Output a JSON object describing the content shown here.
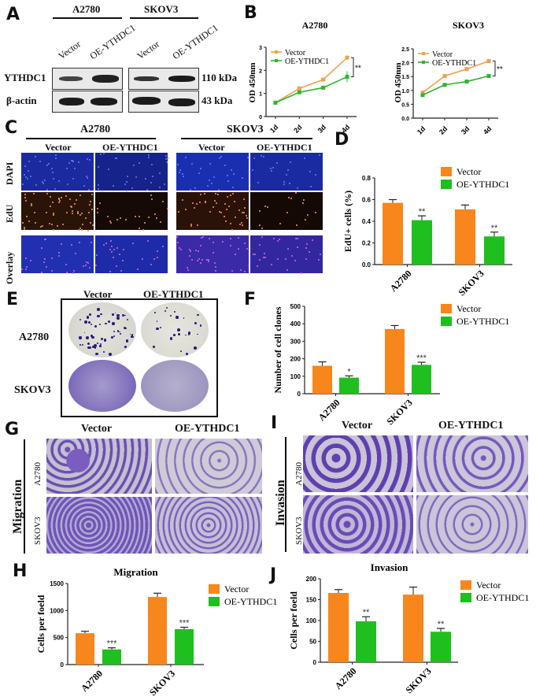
{
  "panels": {
    "A": {
      "label": "A",
      "cell_lines": [
        "A2780",
        "SKOV3"
      ],
      "lanes": [
        "Vector",
        "OE-YTHDC1",
        "Vector",
        "OE-YTHDC1"
      ],
      "rows": [
        {
          "protein": "YTHDC1",
          "size": "110 kDa"
        },
        {
          "protein": "β-actin",
          "size": "43 kDa"
        }
      ]
    },
    "B": {
      "label": "B"
    },
    "C": {
      "label": "C",
      "cell_lines": [
        "A2780",
        "SKOV3"
      ],
      "columns": [
        "Vector",
        "OE-YTHDC1",
        "Vector",
        "OE-YTHDC1"
      ],
      "rows": [
        "DAPI",
        "EdU",
        "Overlay"
      ]
    },
    "D": {
      "label": "D"
    },
    "E": {
      "label": "E",
      "columns": [
        "Vector",
        "OE-YTHDC1"
      ],
      "rows": [
        "A2780",
        "SKOV3"
      ]
    },
    "F": {
      "label": "F"
    },
    "G": {
      "label": "G",
      "assay": "Migration",
      "columns": [
        "Vector",
        "OE-YTHDC1"
      ],
      "rows": [
        "A2780",
        "SKOV3"
      ]
    },
    "H": {
      "label": "H"
    },
    "I": {
      "label": "I",
      "assay": "Invasion",
      "columns": [
        "Vector",
        "OE-YTHDC1"
      ],
      "rows": [
        "A2780",
        "SKOV3"
      ]
    },
    "J": {
      "label": "J"
    }
  },
  "colors": {
    "vector": "#f7861c",
    "oe": "#1fbf1f",
    "vector_line": "#f0a050",
    "oe_line": "#2db52d"
  },
  "chart_data": [
    {
      "id": "B-A2780",
      "type": "line",
      "title": "A2780",
      "xlabel": "",
      "ylabel": "OD 450nm",
      "x": [
        "1d",
        "2d",
        "3d",
        "4d"
      ],
      "ylim": [
        0,
        3
      ],
      "yticks": [
        0,
        1,
        2,
        3
      ],
      "series": [
        {
          "name": "Vector",
          "values": [
            0.6,
            1.22,
            1.6,
            2.55
          ],
          "errors": [
            0.03,
            0.04,
            0.04,
            0.06
          ]
        },
        {
          "name": "OE-YTHDC1",
          "values": [
            0.6,
            1.05,
            1.25,
            1.72
          ],
          "errors": [
            0.03,
            0.04,
            0.08,
            0.24
          ]
        }
      ],
      "annotations": [
        "**"
      ],
      "legend_position": "upper left",
      "grid": false
    },
    {
      "id": "B-SKOV3",
      "type": "line",
      "title": "SKOV3",
      "xlabel": "",
      "ylabel": "OD 450nm",
      "x": [
        "1d",
        "2d",
        "3d",
        "4d"
      ],
      "ylim": [
        0,
        2.5
      ],
      "yticks": [
        0.0,
        0.5,
        1.0,
        1.5,
        2.0,
        2.5
      ],
      "series": [
        {
          "name": "Vector",
          "values": [
            0.92,
            1.52,
            1.77,
            2.06
          ],
          "errors": [
            0.04,
            0.03,
            0.08,
            0.05
          ]
        },
        {
          "name": "OE-YTHDC1",
          "values": [
            0.83,
            1.2,
            1.32,
            1.52
          ],
          "errors": [
            0.03,
            0.03,
            0.04,
            0.06
          ]
        }
      ],
      "annotations": [
        "**"
      ],
      "legend_position": "upper left",
      "grid": false
    },
    {
      "id": "D",
      "type": "bar",
      "title": "",
      "xlabel": "",
      "ylabel": "EdU+ cells (%)",
      "categories": [
        "A2780",
        "SKOV3"
      ],
      "ylim": [
        0,
        0.8
      ],
      "yticks": [
        0.0,
        0.2,
        0.4,
        0.6,
        0.8
      ],
      "series": [
        {
          "name": "Vector",
          "values": [
            0.57,
            0.51
          ],
          "errors": [
            0.03,
            0.04
          ]
        },
        {
          "name": "OE-YTHDC1",
          "values": [
            0.41,
            0.26
          ],
          "errors": [
            0.04,
            0.04
          ]
        }
      ],
      "annotations": [
        "**",
        "**"
      ],
      "legend_position": "top right"
    },
    {
      "id": "F",
      "type": "bar",
      "title": "",
      "xlabel": "",
      "ylabel": "Number of cell clones",
      "categories": [
        "A2780",
        "SKOV3"
      ],
      "ylim": [
        0,
        500
      ],
      "yticks": [
        0,
        100,
        200,
        300,
        400,
        500
      ],
      "series": [
        {
          "name": "Vector",
          "values": [
            160,
            370
          ],
          "errors": [
            22,
            20
          ]
        },
        {
          "name": "OE-YTHDC1",
          "values": [
            92,
            165
          ],
          "errors": [
            10,
            15
          ]
        }
      ],
      "annotations": [
        "*",
        "***"
      ],
      "legend_position": "top right"
    },
    {
      "id": "H",
      "type": "bar",
      "title": "Migration",
      "xlabel": "",
      "ylabel": "Cells per foeld",
      "categories": [
        "A2780",
        "SKOV3"
      ],
      "ylim": [
        0,
        1500
      ],
      "yticks": [
        0,
        500,
        1000,
        1500
      ],
      "series": [
        {
          "name": "Vector",
          "values": [
            580,
            1250
          ],
          "errors": [
            35,
            70
          ]
        },
        {
          "name": "OE-YTHDC1",
          "values": [
            280,
            655
          ],
          "errors": [
            30,
            35
          ]
        }
      ],
      "annotations": [
        "***",
        "***"
      ],
      "legend_position": "right"
    },
    {
      "id": "J",
      "type": "bar",
      "title": "Invasion",
      "xlabel": "",
      "ylabel": "Cells per foeld",
      "categories": [
        "A2780",
        "SKOV3"
      ],
      "ylim": [
        0,
        200
      ],
      "yticks": [
        0,
        50,
        100,
        150,
        200
      ],
      "series": [
        {
          "name": "Vector",
          "values": [
            166,
            162
          ],
          "errors": [
            8,
            18
          ]
        },
        {
          "name": "OE-YTHDC1",
          "values": [
            98,
            73
          ],
          "errors": [
            11,
            8
          ]
        }
      ],
      "annotations": [
        "**",
        "**"
      ],
      "legend_position": "right"
    }
  ]
}
